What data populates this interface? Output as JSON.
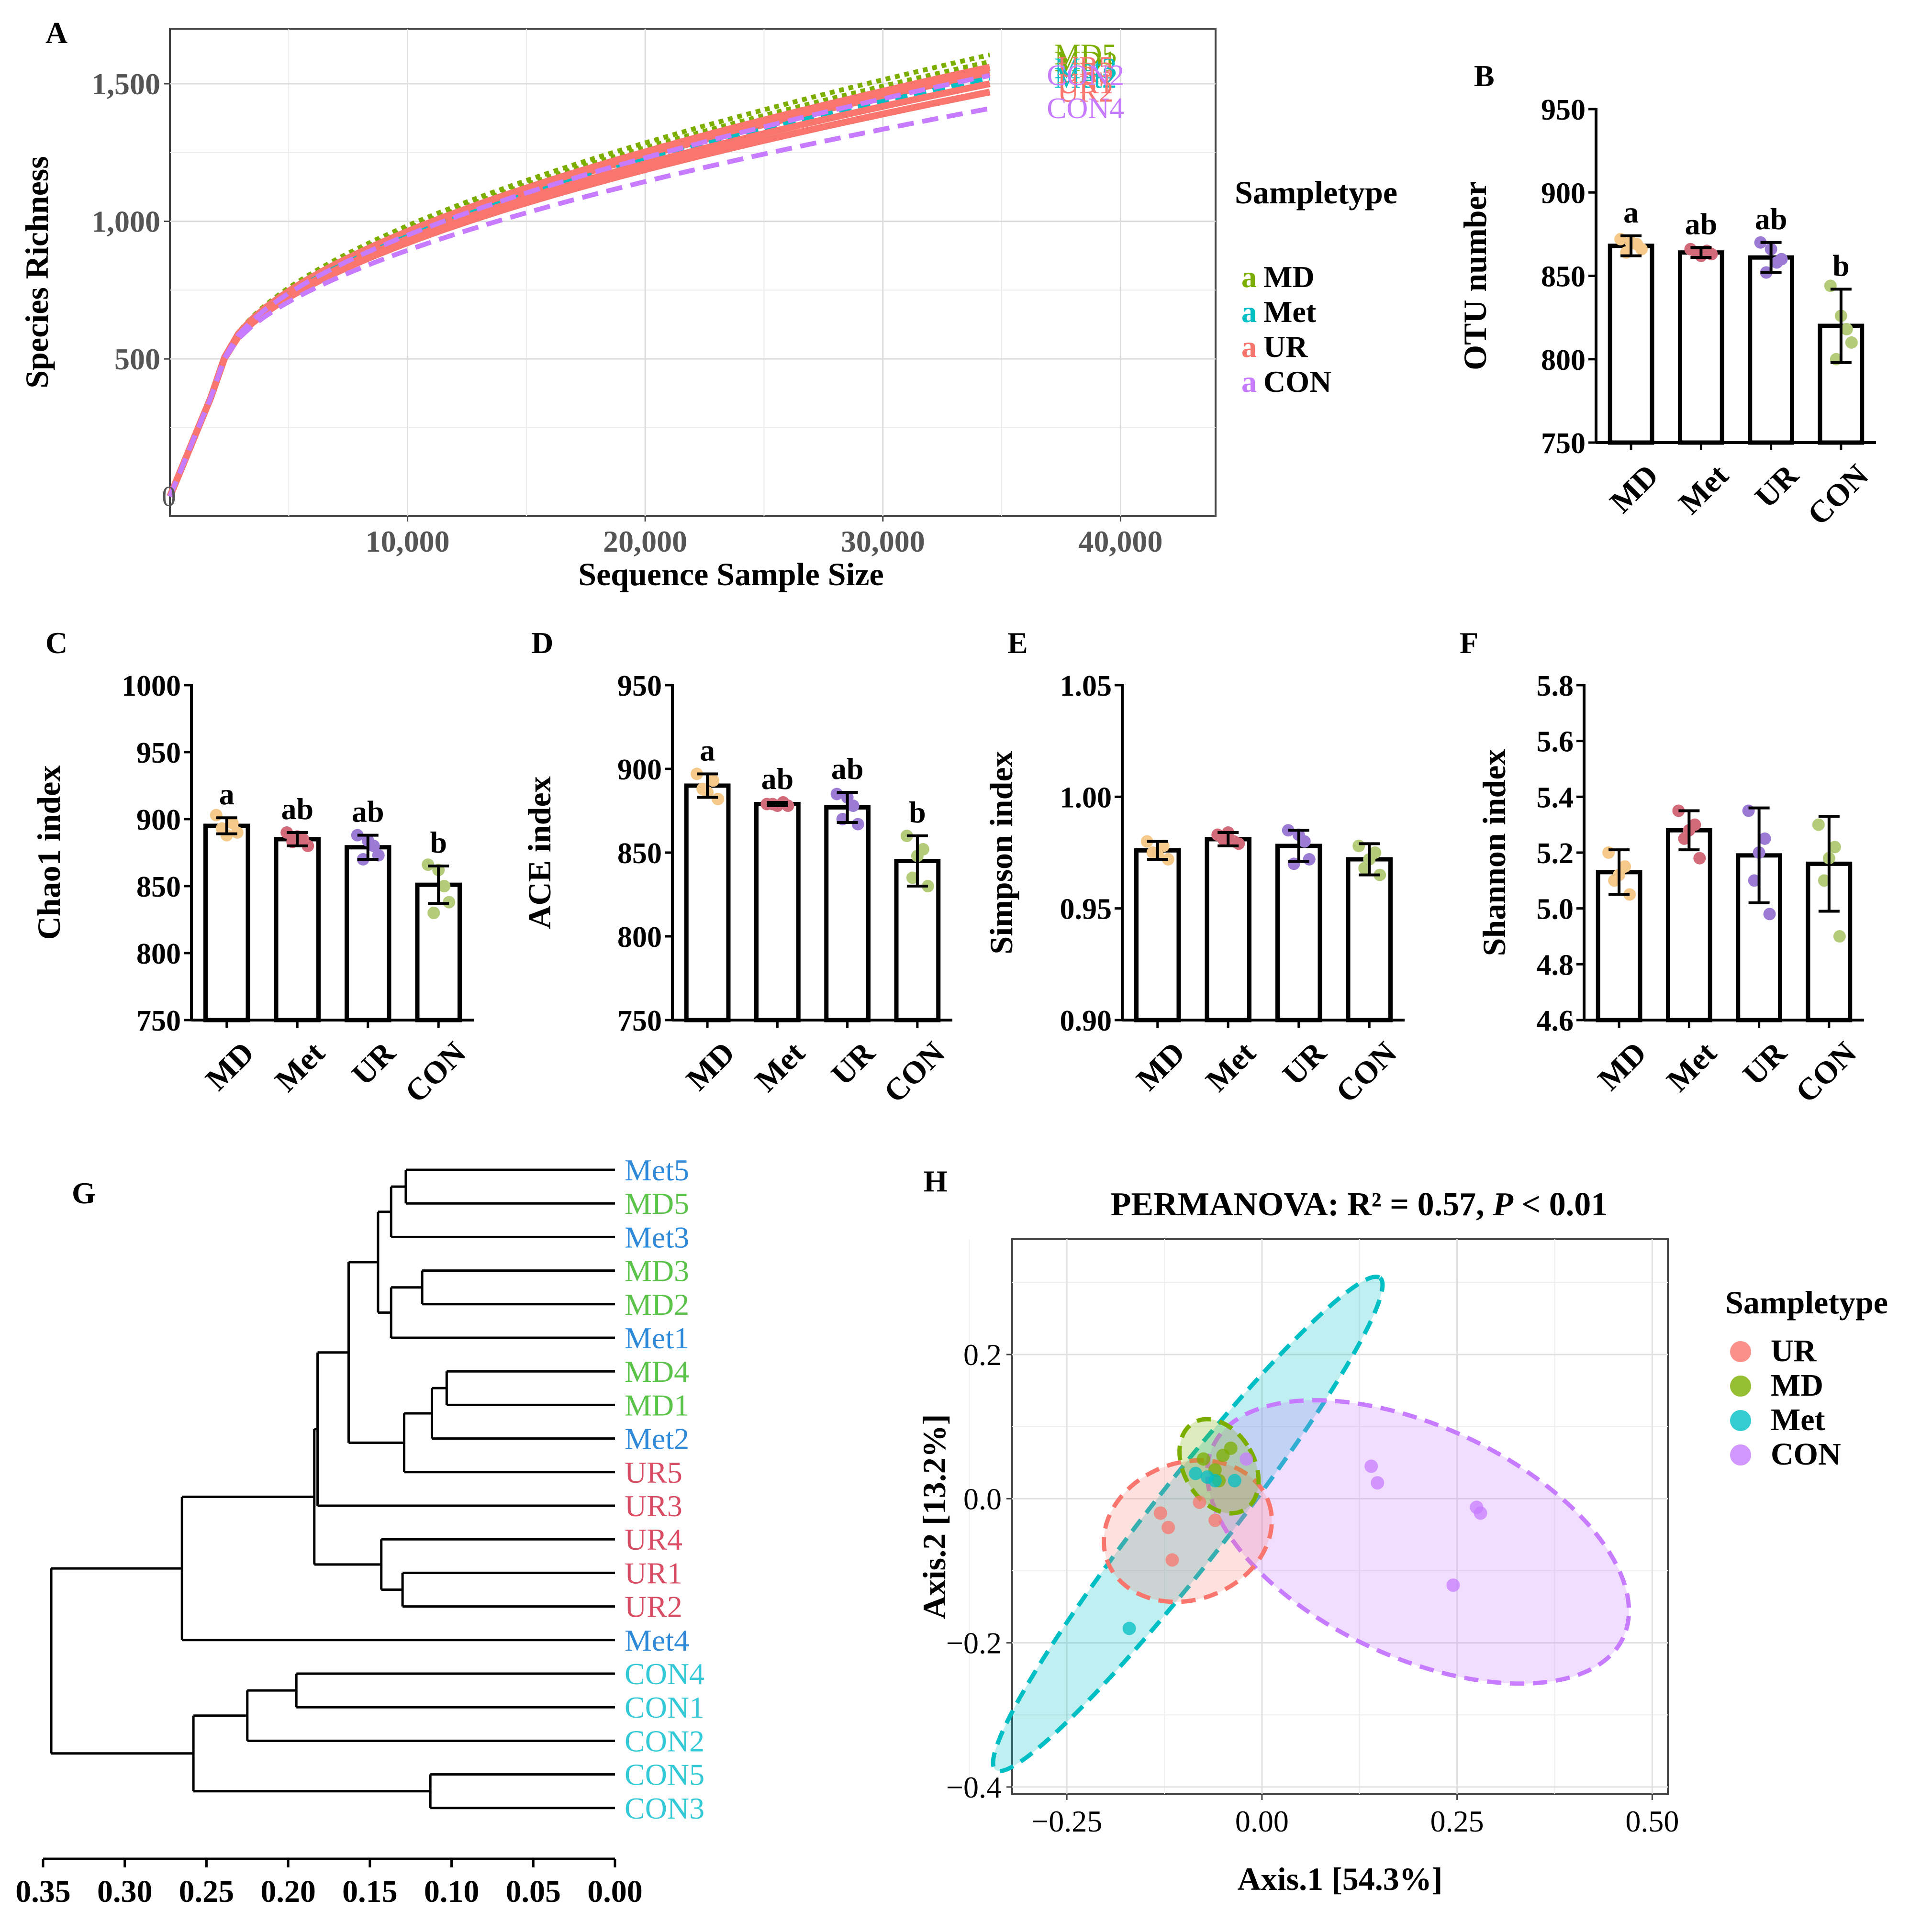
{
  "figure": {
    "panel_labels": {
      "A": "A",
      "B": "B",
      "C": "C",
      "D": "D",
      "E": "E",
      "F": "F",
      "G": "G",
      "H": "H"
    }
  },
  "colors": {
    "MD": "#7CAE00",
    "Met": "#00BFC4",
    "UR": "#F8766D",
    "CON": "#C77CFF",
    "dot_MD": "#F5C98A",
    "dot_Met": "#D26A7A",
    "dot_UR": "#9B7BD3",
    "dot_CON": "#B4CB7A",
    "den_Met": "#2E8AD8",
    "den_MD": "#5BC24A",
    "den_UR": "#D94D64",
    "den_CON": "#33C9D6"
  },
  "chart_data": [
    {
      "id": "A",
      "type": "line",
      "title": "",
      "xlabel": "Sequence Sample Size",
      "ylabel": "Species Richness",
      "xlim": [
        0,
        44000
      ],
      "ylim": [
        -70,
        1700
      ],
      "xticks": [
        10000,
        20000,
        30000,
        40000
      ],
      "xtick_labels": [
        "10,000",
        "20,000",
        "30,000",
        "40,000"
      ],
      "yticks": [
        500,
        1000,
        1500
      ],
      "ytick_labels": [
        "500",
        "1,000",
        "1,500"
      ],
      "origin_label": "0",
      "legend_title": "Sampletype",
      "legend_key_glyph": "a",
      "legend": [
        "MD",
        "Met",
        "UR",
        "CON"
      ],
      "grid": true,
      "series": [
        {
          "name": "MD5",
          "group": "MD",
          "end_x": 34500,
          "end_y": 1605,
          "label": "MD5"
        },
        {
          "name": "MD1",
          "group": "MD",
          "end_x": 34500,
          "end_y": 1580,
          "label": "MD1"
        },
        {
          "name": "Met3",
          "group": "Met",
          "end_x": 34500,
          "end_y": 1555,
          "label": "Met3"
        },
        {
          "name": "UR5",
          "group": "UR",
          "end_x": 34500,
          "end_y": 1560,
          "label": "UR5"
        },
        {
          "name": "UR3",
          "group": "UR",
          "end_x": 34500,
          "end_y": 1540,
          "label": "UR3"
        },
        {
          "name": "Met2",
          "group": "Met",
          "end_x": 34500,
          "end_y": 1520,
          "label": "Met2"
        },
        {
          "name": "UR1",
          "group": "UR",
          "end_x": 34500,
          "end_y": 1500,
          "label": "UR1"
        },
        {
          "name": "UR2",
          "group": "UR",
          "end_x": 34500,
          "end_y": 1470,
          "label": "UR2"
        },
        {
          "name": "CON2",
          "group": "CON",
          "end_x": 34500,
          "end_y": 1530,
          "label": "CON2"
        },
        {
          "name": "CON4",
          "group": "CON",
          "end_x": 34500,
          "end_y": 1410,
          "label": "CON4"
        }
      ]
    },
    {
      "id": "B",
      "type": "bar",
      "ylabel": "OTU number",
      "categories": [
        "MD",
        "Met",
        "UR",
        "CON"
      ],
      "values": [
        868,
        864,
        861,
        820
      ],
      "errors": [
        6,
        3,
        9,
        22
      ],
      "ylim": [
        750,
        950
      ],
      "yticks": [
        750,
        800,
        850,
        900,
        950
      ],
      "letters": [
        "a",
        "ab",
        "ab",
        "b"
      ],
      "points": [
        [
          872,
          866,
          864,
          869,
          870
        ],
        [
          866,
          863,
          864,
          865,
          862
        ],
        [
          870,
          860,
          852,
          858,
          866
        ],
        [
          844,
          810,
          800,
          818,
          826
        ]
      ]
    },
    {
      "id": "C",
      "type": "bar",
      "ylabel": "Chao1 index",
      "categories": [
        "MD",
        "Met",
        "UR",
        "CON"
      ],
      "values": [
        895,
        885,
        879,
        851
      ],
      "errors": [
        6,
        5,
        9,
        14
      ],
      "ylim": [
        750,
        1000
      ],
      "yticks": [
        750,
        800,
        850,
        900,
        950,
        1000
      ],
      "letters": [
        "a",
        "ab",
        "ab",
        "b"
      ],
      "points": [
        [
          903,
          890,
          893,
          897,
          888
        ],
        [
          890,
          880,
          883,
          885,
          887
        ],
        [
          888,
          873,
          870,
          880,
          884
        ],
        [
          866,
          838,
          830,
          850,
          862
        ]
      ]
    },
    {
      "id": "D",
      "type": "bar",
      "ylabel": "ACE index",
      "categories": [
        "MD",
        "Met",
        "UR",
        "CON"
      ],
      "values": [
        890,
        879,
        877,
        845
      ],
      "errors": [
        7,
        1,
        9,
        15
      ],
      "ylim": [
        750,
        950
      ],
      "yticks": [
        750,
        800,
        850,
        900,
        950
      ],
      "letters": [
        "a",
        "ab",
        "ab",
        "b"
      ],
      "points": [
        [
          897,
          882,
          888,
          893,
          886
        ],
        [
          879,
          878,
          879,
          880,
          878
        ],
        [
          885,
          867,
          870,
          878,
          883
        ],
        [
          860,
          830,
          835,
          852,
          848
        ]
      ]
    },
    {
      "id": "E",
      "type": "bar",
      "ylabel": "Simpson index",
      "categories": [
        "MD",
        "Met",
        "UR",
        "CON"
      ],
      "values": [
        0.976,
        0.981,
        0.978,
        0.972
      ],
      "errors": [
        0.004,
        0.003,
        0.007,
        0.007
      ],
      "ylim": [
        0.9,
        1.05
      ],
      "yticks": [
        0.9,
        0.95,
        1.0,
        1.05
      ],
      "ytick_labels": [
        "0.90",
        "0.95",
        "1.00",
        "1.05"
      ],
      "letters": [
        "",
        "",
        "",
        ""
      ],
      "points": [
        [
          0.98,
          0.972,
          0.975,
          0.978,
          0.974
        ],
        [
          0.983,
          0.979,
          0.981,
          0.98,
          0.984
        ],
        [
          0.985,
          0.972,
          0.97,
          0.98,
          0.983
        ],
        [
          0.978,
          0.965,
          0.968,
          0.975,
          0.972
        ]
      ]
    },
    {
      "id": "F",
      "type": "bar",
      "ylabel": "Shannon index",
      "categories": [
        "MD",
        "Met",
        "UR",
        "CON"
      ],
      "values": [
        5.13,
        5.28,
        5.19,
        5.16
      ],
      "errors": [
        0.08,
        0.07,
        0.17,
        0.17
      ],
      "ylim": [
        4.6,
        5.8
      ],
      "yticks": [
        4.6,
        4.8,
        5.0,
        5.2,
        5.4,
        5.6,
        5.8
      ],
      "ytick_labels": [
        "4.6",
        "4.8",
        "5.0",
        "5.2",
        "5.4",
        "5.6",
        "5.8"
      ],
      "letters": [
        "",
        "",
        "",
        ""
      ],
      "points": [
        [
          5.2,
          5.05,
          5.1,
          5.15,
          5.12
        ],
        [
          5.35,
          5.18,
          5.25,
          5.3,
          5.28
        ],
        [
          5.35,
          4.98,
          5.1,
          5.25,
          5.2
        ],
        [
          5.3,
          4.9,
          5.1,
          5.22,
          5.18
        ]
      ]
    },
    {
      "id": "G",
      "type": "dendrogram",
      "xlim": [
        0.35,
        0.0
      ],
      "xticks": [
        0.35,
        0.3,
        0.25,
        0.2,
        0.15,
        0.1,
        0.05,
        0.0
      ],
      "xtick_labels": [
        "0.35",
        "0.30",
        "0.25",
        "0.20",
        "0.15",
        "0.10",
        "0.05",
        "0.00"
      ],
      "leaves": [
        {
          "label": "Met5",
          "group": "Met"
        },
        {
          "label": "MD5",
          "group": "MD"
        },
        {
          "label": "Met3",
          "group": "Met"
        },
        {
          "label": "MD3",
          "group": "MD"
        },
        {
          "label": "MD2",
          "group": "MD"
        },
        {
          "label": "Met1",
          "group": "Met"
        },
        {
          "label": "MD4",
          "group": "MD"
        },
        {
          "label": "MD1",
          "group": "MD"
        },
        {
          "label": "Met2",
          "group": "Met"
        },
        {
          "label": "UR5",
          "group": "UR"
        },
        {
          "label": "UR3",
          "group": "UR"
        },
        {
          "label": "UR4",
          "group": "UR"
        },
        {
          "label": "UR1",
          "group": "UR"
        },
        {
          "label": "UR2",
          "group": "UR"
        },
        {
          "label": "Met4",
          "group": "Met"
        },
        {
          "label": "CON4",
          "group": "CON"
        },
        {
          "label": "CON1",
          "group": "CON"
        },
        {
          "label": "CON2",
          "group": "CON"
        },
        {
          "label": "CON5",
          "group": "CON"
        },
        {
          "label": "CON3",
          "group": "CON"
        }
      ],
      "merges": [
        {
          "a": "L0",
          "b": "L1",
          "h": 0.128
        },
        {
          "a": "L3",
          "b": "L4",
          "h": 0.118
        },
        {
          "a": "L6",
          "b": "L7",
          "h": 0.103
        },
        {
          "a": "L12",
          "b": "L13",
          "h": 0.13
        },
        {
          "a": "L18",
          "b": "L19",
          "h": 0.113
        },
        {
          "a": "L15",
          "b": "L16",
          "h": 0.195
        },
        {
          "a": "M0",
          "b": "L2",
          "h": 0.137
        },
        {
          "a": "M1",
          "b": "L5",
          "h": 0.137
        },
        {
          "a": "M6",
          "b": "M7",
          "h": 0.145
        },
        {
          "a": "M2",
          "b": "L8",
          "h": 0.112
        },
        {
          "a": "M9",
          "b": "L9",
          "h": 0.129
        },
        {
          "a": "M8",
          "b": "M10",
          "h": 0.163
        },
        {
          "a": "M3",
          "b": "L11",
          "h": 0.143
        },
        {
          "a": "M11",
          "b": "L10",
          "h": 0.182
        },
        {
          "a": "M13",
          "b": "M12",
          "h": 0.184
        },
        {
          "a": "M14",
          "b": "L14",
          "h": 0.265
        },
        {
          "a": "M5",
          "b": "L17",
          "h": 0.225
        },
        {
          "a": "M16",
          "b": "M4",
          "h": 0.258
        },
        {
          "a": "M15",
          "b": "M17",
          "h": 0.345
        }
      ]
    },
    {
      "id": "H",
      "type": "scatter",
      "title_prefix": "PERMANOVA: R² = 0.57, ",
      "title_p": "P",
      "title_suffix": " < 0.01",
      "xlabel": "Axis.1   [54.3%]",
      "ylabel": "Axis.2   [13.2%]",
      "xlim": [
        -0.32,
        0.52
      ],
      "ylim": [
        -0.41,
        0.36
      ],
      "xticks": [
        -0.25,
        0.0,
        0.25,
        0.5
      ],
      "xtick_labels": [
        "−0.25",
        "0.00",
        "0.25",
        "0.50"
      ],
      "yticks": [
        -0.4,
        -0.2,
        0.0,
        0.2
      ],
      "ytick_labels": [
        "−0.4",
        "−0.2",
        "0.0",
        "0.2"
      ],
      "legend_title": "Sampletype",
      "legend": [
        "UR",
        "MD",
        "Met",
        "CON"
      ],
      "points": {
        "UR": [
          [
            -0.13,
            -0.02
          ],
          [
            -0.12,
            -0.04
          ],
          [
            -0.08,
            -0.005
          ],
          [
            -0.06,
            -0.03
          ],
          [
            -0.115,
            -0.085
          ]
        ],
        "MD": [
          [
            -0.075,
            0.055
          ],
          [
            -0.05,
            0.06
          ],
          [
            -0.04,
            0.07
          ],
          [
            -0.06,
            0.04
          ],
          [
            -0.055,
            0.025
          ]
        ],
        "Met": [
          [
            -0.07,
            0.03
          ],
          [
            -0.06,
            0.025
          ],
          [
            -0.035,
            0.025
          ],
          [
            -0.085,
            0.035
          ],
          [
            -0.17,
            -0.18
          ]
        ],
        "CON": [
          [
            0.14,
            0.045
          ],
          [
            0.148,
            0.022
          ],
          [
            0.275,
            -0.012
          ],
          [
            0.28,
            -0.02
          ],
          [
            0.245,
            -0.12
          ],
          [
            -0.02,
            0.055
          ]
        ]
      },
      "ellipses": {
        "UR": {
          "cx": -0.095,
          "cy": -0.045,
          "rx": 0.11,
          "ry": 0.095,
          "angle": 20
        },
        "MD": {
          "cx": -0.055,
          "cy": 0.045,
          "rx": 0.045,
          "ry": 0.07,
          "angle": 30
        },
        "Met": {
          "cx": -0.095,
          "cy": -0.035,
          "rx": 0.4,
          "ry": 0.055,
          "angle": 52
        },
        "CON": {
          "cx": 0.2,
          "cy": -0.06,
          "rx": 0.29,
          "ry": 0.16,
          "angle": -25
        }
      }
    }
  ]
}
